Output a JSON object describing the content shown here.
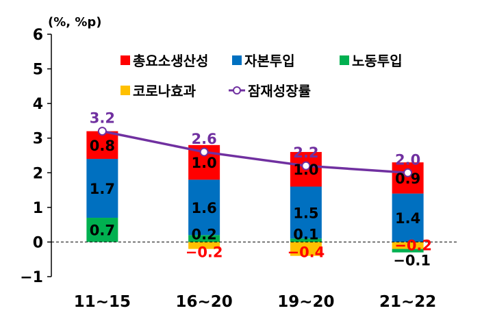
{
  "chart_data": {
    "type": "bar",
    "unit_label": "(%, %p)",
    "categories": [
      "11~15",
      "16~20",
      "19~20",
      "21~22"
    ],
    "ylim": [
      -1,
      6
    ],
    "yticks": [
      -1,
      0,
      1,
      2,
      3,
      4,
      5,
      6
    ],
    "ytick_labels": [
      "−1",
      "0",
      "1",
      "2",
      "3",
      "4",
      "5",
      "6"
    ],
    "legend_position": "top-right",
    "series": [
      {
        "name": "코로나효과",
        "color": "#FFC000",
        "values": [
          0.0,
          -0.2,
          -0.4,
          -0.2
        ],
        "labels": [
          "",
          "−0.2",
          "−0.4",
          "−0.2"
        ],
        "label_color": "#FF0000"
      },
      {
        "name": "노동투입",
        "color": "#00B050",
        "values": [
          0.7,
          0.2,
          0.1,
          -0.1
        ],
        "labels": [
          "0.7",
          "0.2",
          "0.1",
          "−0.1"
        ],
        "label_color": "#000000"
      },
      {
        "name": "자본투입",
        "color": "#0070C0",
        "values": [
          1.7,
          1.6,
          1.5,
          1.4
        ],
        "labels": [
          "1.7",
          "1.6",
          "1.5",
          "1.4"
        ],
        "label_color": "#000000"
      },
      {
        "name": "총요소생산성",
        "color": "#FF0000",
        "values": [
          0.8,
          1.0,
          1.0,
          0.9
        ],
        "labels": [
          "0.8",
          "1.0",
          "1.0",
          "0.9"
        ],
        "label_color": "#000000"
      }
    ],
    "line": {
      "name": "잠재성장률",
      "color": "#7030A0",
      "values": [
        3.2,
        2.6,
        2.2,
        2.0
      ],
      "labels": [
        "3.2",
        "2.6",
        "2.2",
        "2.0"
      ]
    },
    "legend_order": [
      "총요소생산성",
      "자본투입",
      "노동투입",
      "코로나효과",
      "잠재성장률"
    ]
  }
}
